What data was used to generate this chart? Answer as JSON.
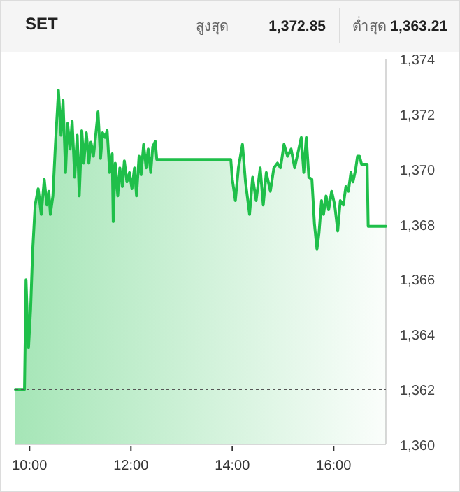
{
  "chart_data": {
    "type": "area",
    "title": "SET",
    "annotations": [
      "สูงสุด",
      "1,372.85",
      "ต่ำสุด",
      "1,363.21"
    ],
    "x": [
      9.72,
      9.9,
      9.93,
      9.95,
      9.98,
      10.02,
      10.06,
      10.11,
      10.17,
      10.23,
      10.29,
      10.34,
      10.38,
      10.41,
      10.46,
      10.51,
      10.57,
      10.62,
      10.66,
      10.71,
      10.75,
      10.8,
      10.84,
      10.89,
      10.94,
      10.98,
      11.03,
      11.07,
      11.12,
      11.17,
      11.21,
      11.26,
      11.3,
      11.35,
      11.4,
      11.44,
      11.49,
      11.53,
      11.58,
      11.63,
      11.65,
      11.69,
      11.74,
      11.78,
      11.83,
      11.87,
      11.92,
      11.97,
      12.02,
      12.07,
      12.11,
      12.16,
      12.2,
      12.25,
      12.3,
      12.34,
      12.39,
      12.43,
      12.48,
      12.51,
      13.97,
      14.0,
      14.06,
      14.12,
      14.2,
      14.26,
      14.34,
      14.4,
      14.47,
      14.55,
      14.61,
      14.67,
      14.75,
      14.82,
      14.89,
      14.95,
      15.02,
      15.09,
      15.16,
      15.23,
      15.3,
      15.36,
      15.41,
      15.46,
      15.51,
      15.57,
      15.62,
      15.67,
      15.71,
      15.76,
      15.8,
      15.85,
      15.9,
      15.96,
      16.02,
      16.08,
      16.13,
      16.19,
      16.24,
      16.29,
      16.34,
      16.38,
      16.43,
      16.47,
      16.51,
      16.55,
      16.66,
      16.68,
      17.03
    ],
    "series": [
      {
        "color": "#1fbf4a",
        "values": [
          1362,
          1362,
          1365.98,
          1364.88,
          1363.52,
          1364.88,
          1366.99,
          1368.69,
          1369.28,
          1368.35,
          1369.62,
          1368.69,
          1369.19,
          1368.35,
          1369.02,
          1370.89,
          1372.85,
          1371.22,
          1372.49,
          1369.87,
          1371.65,
          1370.72,
          1371.73,
          1369.7,
          1371.22,
          1369.02,
          1371.39,
          1370.21,
          1371.31,
          1370.21,
          1370.97,
          1370.46,
          1371.14,
          1372.07,
          1370.38,
          1371.31,
          1371.14,
          1371.39,
          1369.87,
          1370.55,
          1368.09,
          1370.21,
          1369.02,
          1370.04,
          1369.36,
          1370.29,
          1369.53,
          1369.87,
          1369.28,
          1370.04,
          1369.02,
          1370.46,
          1369.79,
          1370.89,
          1370.04,
          1370.72,
          1369.87,
          1370.8,
          1371.0,
          1370.34,
          1370.34,
          1369.62,
          1368.85,
          1370.04,
          1370.89,
          1369.53,
          1368.35,
          1369.7,
          1368.85,
          1370.04,
          1368.69,
          1369.87,
          1369.19,
          1370.04,
          1370.21,
          1370.04,
          1370.89,
          1370.46,
          1370.72,
          1370.04,
          1370.63,
          1371.14,
          1369.87,
          1371.14,
          1369.7,
          1369.62,
          1368.01,
          1367.08,
          1367.67,
          1368.85,
          1368.35,
          1369.02,
          1368.52,
          1369.19,
          1368.69,
          1367.75,
          1368.85,
          1368.69,
          1369.36,
          1369.19,
          1369.87,
          1369.53,
          1369.95,
          1370.46,
          1370.46,
          1370.17,
          1370.17,
          1367.92,
          1367.92
        ]
      }
    ],
    "xlim": [
      9.72,
      17.03
    ],
    "xticks": [
      {
        "value": 10,
        "label": "10:00"
      },
      {
        "value": 12,
        "label": "12:00"
      },
      {
        "value": 14,
        "label": "14:00"
      },
      {
        "value": 16,
        "label": "16:00"
      }
    ],
    "ylim": [
      1360,
      1374
    ],
    "yticks": [
      {
        "value": 1360,
        "label": "1,360"
      },
      {
        "value": 1362,
        "label": "1,362"
      },
      {
        "value": 1364,
        "label": "1,364"
      },
      {
        "value": 1366,
        "label": "1,366"
      },
      {
        "value": 1368,
        "label": "1,368"
      },
      {
        "value": 1370,
        "label": "1,370"
      },
      {
        "value": 1372,
        "label": "1,372"
      },
      {
        "value": 1374,
        "label": "1,374"
      }
    ],
    "ref_lines": [
      {
        "axis": "y",
        "value": 1362,
        "color": "#555555",
        "line_style": "dashed"
      }
    ],
    "grid": false
  }
}
